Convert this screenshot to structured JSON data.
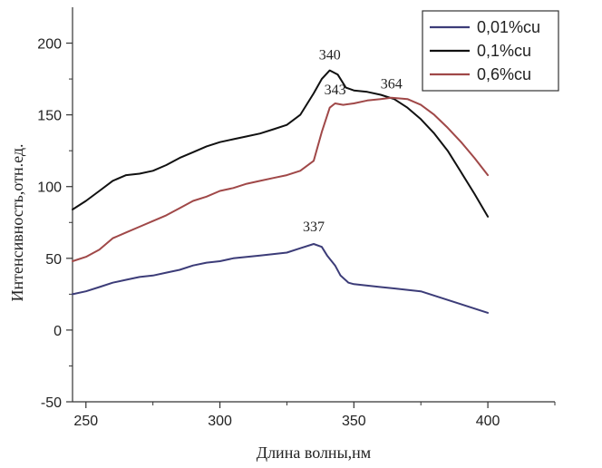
{
  "chart_data": {
    "type": "line",
    "xlabel": "Длина волны,нм",
    "ylabel": "Интенсивность,отн.ед.",
    "xlim": [
      245,
      425
    ],
    "ylim": [
      -50,
      225
    ],
    "x_ticks": [
      250,
      300,
      350,
      400
    ],
    "y_ticks": [
      -50,
      0,
      50,
      100,
      150,
      200
    ],
    "grid": false,
    "legend_position": "top-right",
    "series": [
      {
        "name": "0,01%cu",
        "color": "#3c3c78",
        "x": [
          245,
          250,
          255,
          260,
          265,
          270,
          275,
          280,
          285,
          290,
          295,
          300,
          305,
          310,
          315,
          320,
          325,
          330,
          335,
          338,
          340,
          343,
          345,
          348,
          350,
          355,
          360,
          365,
          370,
          375,
          380,
          385,
          390,
          395,
          400
        ],
        "y": [
          25,
          27,
          30,
          33,
          35,
          37,
          38,
          40,
          42,
          45,
          47,
          48,
          50,
          51,
          52,
          53,
          54,
          57,
          60,
          58,
          52,
          45,
          38,
          33,
          32,
          31,
          30,
          29,
          28,
          27,
          24,
          21,
          18,
          15,
          12
        ]
      },
      {
        "name": "0,1%cu",
        "color": "#111111",
        "x": [
          245,
          250,
          255,
          260,
          265,
          270,
          275,
          280,
          285,
          290,
          295,
          300,
          305,
          310,
          315,
          320,
          325,
          330,
          335,
          338,
          341,
          344,
          347,
          350,
          355,
          360,
          365,
          370,
          375,
          380,
          385,
          390,
          395,
          400
        ],
        "y": [
          84,
          90,
          97,
          104,
          108,
          109,
          111,
          115,
          120,
          124,
          128,
          131,
          133,
          135,
          137,
          140,
          143,
          150,
          165,
          175,
          181,
          178,
          169,
          167,
          166,
          164,
          161,
          155,
          147,
          137,
          125,
          110,
          95,
          79
        ]
      },
      {
        "name": "0,6%cu",
        "color": "#a04848",
        "x": [
          245,
          250,
          255,
          260,
          265,
          270,
          275,
          280,
          285,
          290,
          295,
          300,
          305,
          310,
          315,
          320,
          325,
          330,
          335,
          338,
          341,
          343,
          346,
          350,
          355,
          360,
          364,
          370,
          375,
          380,
          385,
          390,
          395,
          400
        ],
        "y": [
          48,
          51,
          56,
          64,
          68,
          72,
          76,
          80,
          85,
          90,
          93,
          97,
          99,
          102,
          104,
          106,
          108,
          111,
          118,
          138,
          155,
          158,
          157,
          158,
          160,
          161,
          162,
          161,
          157,
          150,
          141,
          131,
          120,
          108
        ]
      }
    ],
    "annotations": [
      {
        "text": "337",
        "x": 335,
        "y": 60
      },
      {
        "text": "340",
        "x": 341,
        "y": 181
      },
      {
        "text": "343",
        "x": 343,
        "y": 158
      },
      {
        "text": "364",
        "x": 364,
        "y": 162
      }
    ]
  }
}
